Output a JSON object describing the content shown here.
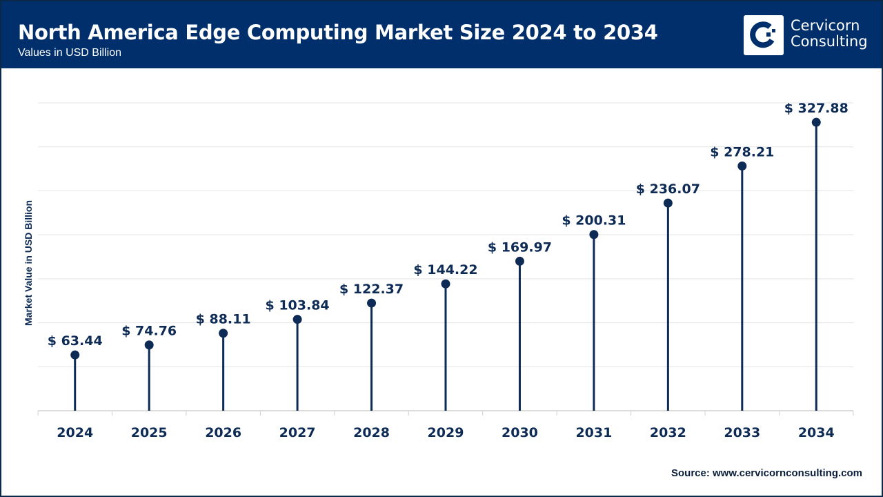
{
  "header": {
    "title": "North America Edge Computing Market Size 2024 to 2034",
    "subtitle": "Values in USD Billion",
    "logo_text_line1": "Cervicorn",
    "logo_text_line2": "Consulting"
  },
  "source": "Source: www.cervicornconsulting.com",
  "colors": {
    "header": "#002f6c",
    "series": "#0d2b55",
    "grid": "#e3e3e3"
  },
  "chart_data": {
    "type": "lollipop",
    "title": "North America Edge Computing Market Size 2024 to 2034",
    "subtitle": "Values in USD Billion",
    "xlabel": "",
    "ylabel": "Market Value in USD Billion",
    "categories": [
      "2024",
      "2025",
      "2026",
      "2027",
      "2028",
      "2029",
      "2030",
      "2031",
      "2032",
      "2033",
      "2034"
    ],
    "values": [
      63.44,
      74.76,
      88.11,
      103.84,
      122.37,
      144.22,
      169.97,
      200.31,
      236.07,
      278.21,
      327.88
    ],
    "labels": [
      "$ 63.44",
      "$ 74.76",
      "$ 88.11",
      "$ 103.84",
      "$ 122.37",
      "$ 144.22",
      "$ 169.97",
      "$ 200.31",
      "$ 236.07",
      "$ 278.21",
      "$ 327.88"
    ],
    "ylim": [
      0,
      350
    ],
    "grid_step": 50,
    "grid": true,
    "legend": "none"
  }
}
